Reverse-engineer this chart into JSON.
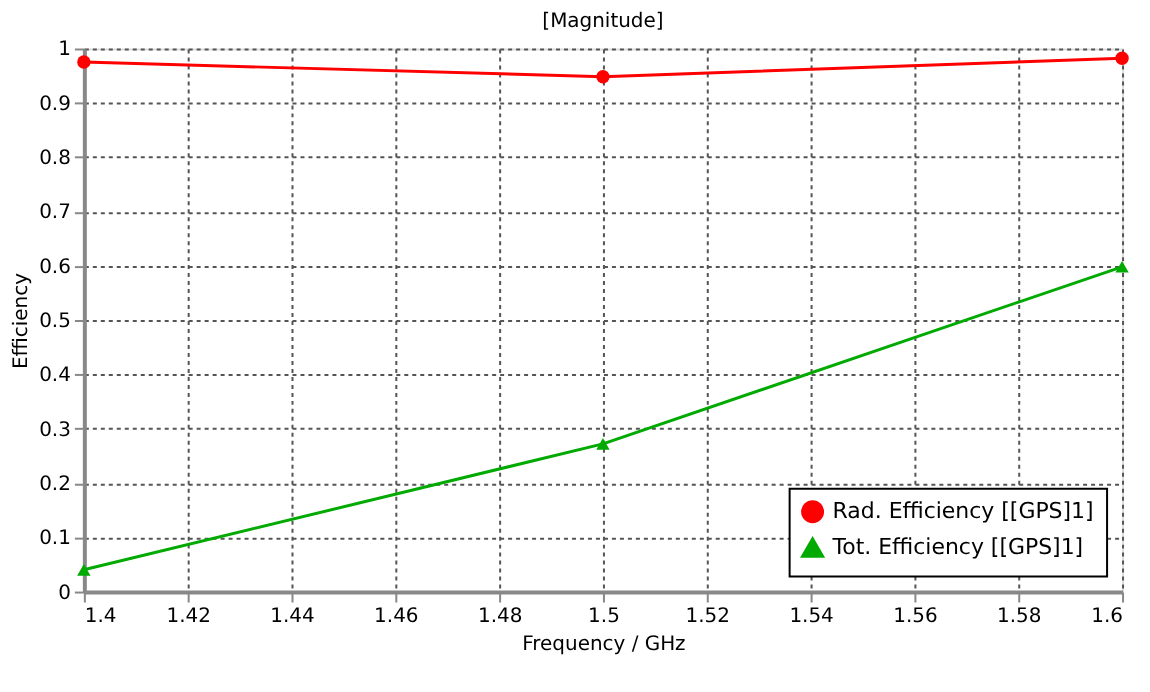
{
  "chart_data": {
    "type": "line",
    "title": "[Magnitude]",
    "xlabel": "Frequency / GHz",
    "ylabel": "Efficiency",
    "x": [
      1.4,
      1.5,
      1.6
    ],
    "series": [
      {
        "name": "Rad. Efficiency [[GPS]1]",
        "color": "#ff0000",
        "values": [
          0.975,
          0.948,
          0.982
        ],
        "marker": "circle"
      },
      {
        "name": "Tot. Efficiency [[GPS]1]",
        "color": "#00aa00",
        "values": [
          0.04,
          0.272,
          0.598
        ],
        "marker": "triangle"
      }
    ],
    "xlim": [
      1.4,
      1.6
    ],
    "xticks": [
      1.4,
      1.42,
      1.44,
      1.46,
      1.48,
      1.5,
      1.52,
      1.54,
      1.56,
      1.58,
      1.6
    ],
    "ylim": [
      0,
      1
    ],
    "yticks": [
      0,
      0.1,
      0.2,
      0.3,
      0.4,
      0.5,
      0.6,
      0.7,
      0.8,
      0.9,
      1
    ],
    "grid": true,
    "legend": "bottom right",
    "line_style": "solid"
  }
}
